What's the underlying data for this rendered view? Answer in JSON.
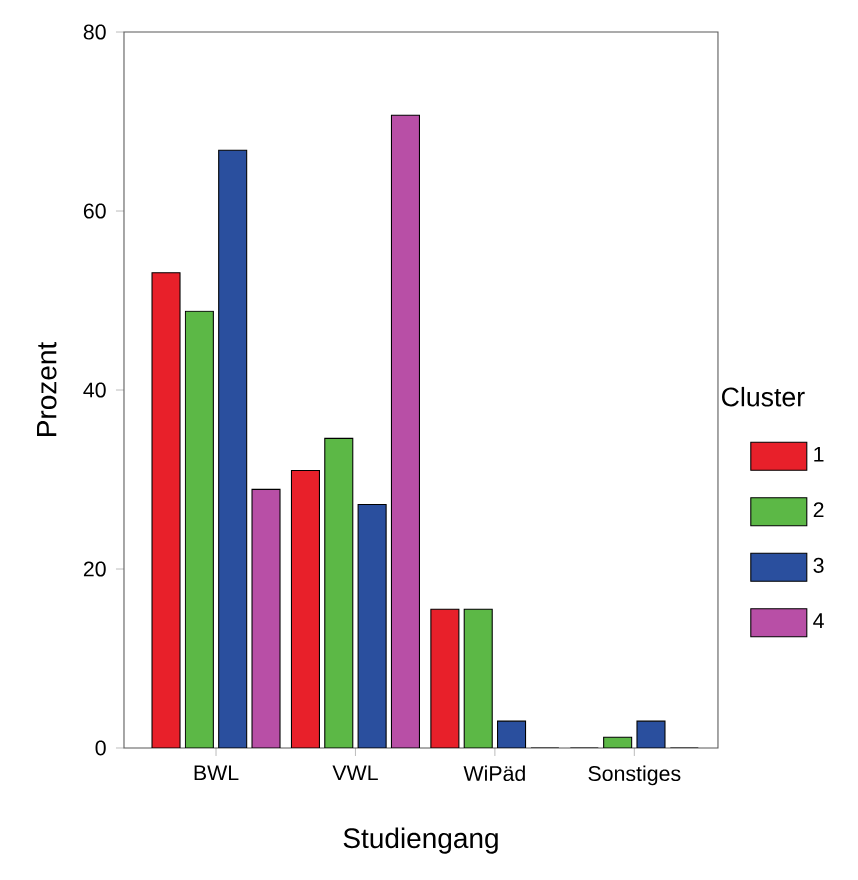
{
  "chart_data": {
    "type": "bar",
    "xlabel": "Studiengang",
    "ylabel": "Prozent",
    "legend_title": "Cluster",
    "legend": "right",
    "categories": [
      "BWL",
      "VWL",
      "WiPäd",
      "Sonstiges"
    ],
    "ylim": [
      0,
      80
    ],
    "yticks": [
      0,
      20,
      40,
      60,
      80
    ],
    "series": [
      {
        "name": "1",
        "color": "#e8202a",
        "values": [
          53.1,
          31.0,
          15.5,
          0
        ]
      },
      {
        "name": "2",
        "color": "#5cb846",
        "values": [
          48.8,
          34.6,
          15.5,
          1.2
        ]
      },
      {
        "name": "3",
        "color": "#2a4f9e",
        "values": [
          66.8,
          27.2,
          3.0,
          3.0
        ]
      },
      {
        "name": "4",
        "color": "#b84fa6",
        "values": [
          28.9,
          70.7,
          0,
          0
        ]
      }
    ]
  }
}
